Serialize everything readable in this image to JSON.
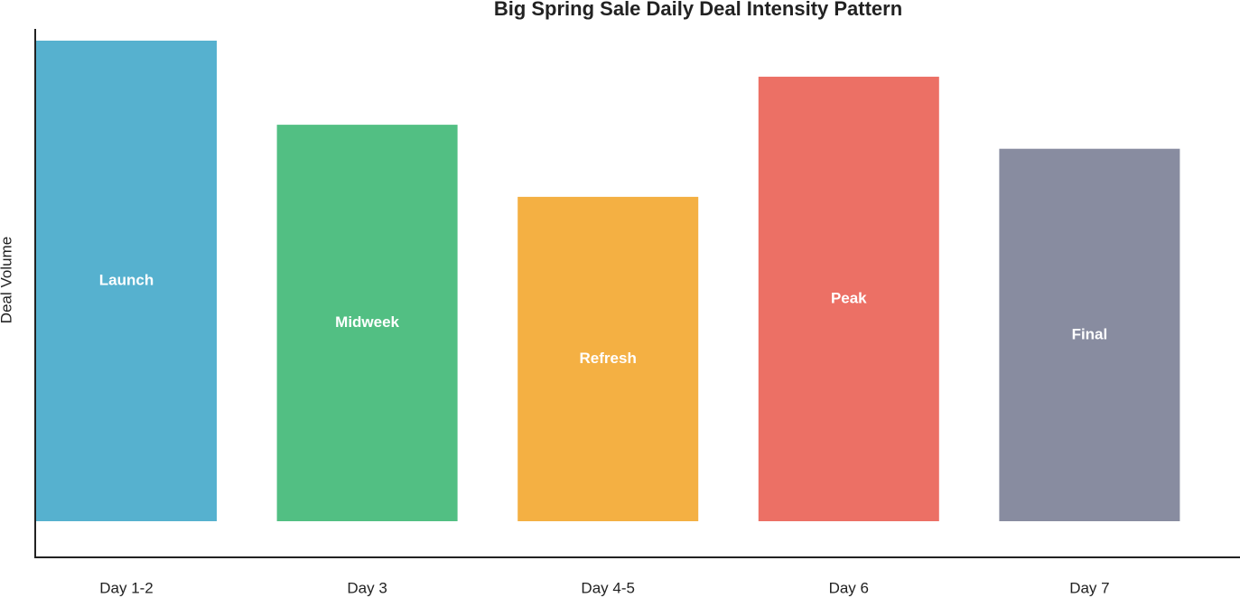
{
  "chart_data": {
    "type": "bar",
    "title": "Big Spring Sale Daily Deal Intensity Pattern",
    "y_label": "Deal Volume",
    "categories": [
      "Day 1-2",
      "Day 3",
      "Day 4-5",
      "Day 6",
      "Day 7"
    ],
    "values": [
      100,
      82.5,
      67.5,
      92.5,
      77.5
    ],
    "labels": [
      "Launch",
      "Midweek",
      "Refresh",
      "Peak",
      "Final"
    ],
    "colors": [
      "#56b1cf",
      "#52bf83",
      "#f4b043",
      "#ec7065",
      "#888ca0"
    ],
    "ylim": [
      0,
      100
    ]
  }
}
